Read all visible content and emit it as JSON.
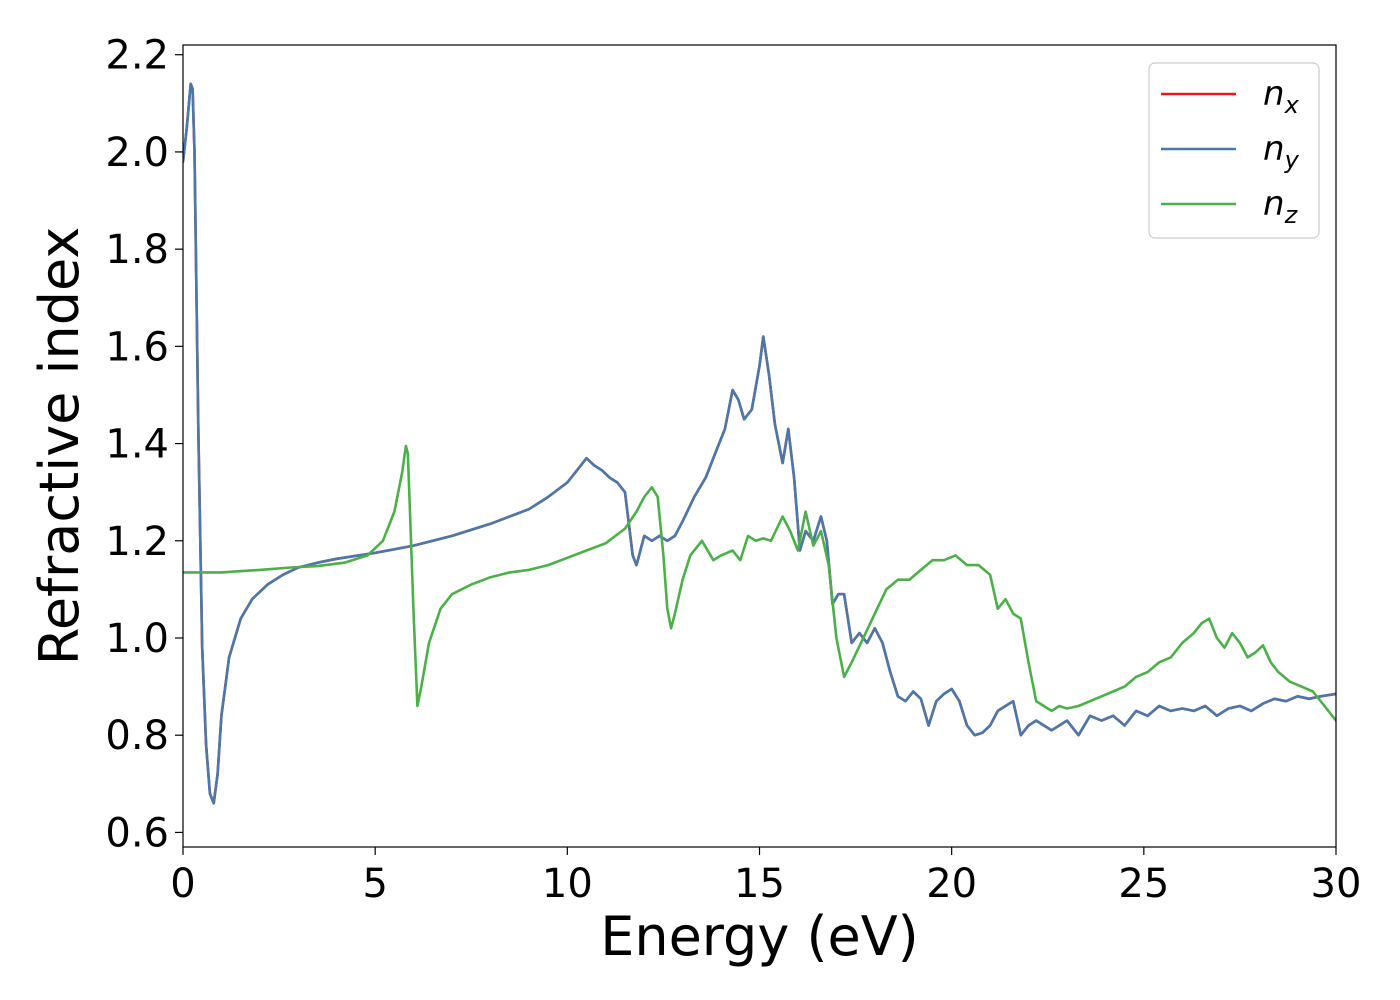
{
  "chart_data": {
    "type": "line",
    "xlabel": "Energy (eV)",
    "ylabel": "Refractive index",
    "xlim": [
      0,
      30
    ],
    "ylim": [
      0.57,
      2.22
    ],
    "xticks": [
      0,
      5,
      10,
      15,
      20,
      25,
      30
    ],
    "xtick_labels": [
      "0",
      "5",
      "10",
      "15",
      "20",
      "25",
      "30"
    ],
    "yticks": [
      0.6,
      0.8,
      1.0,
      1.2,
      1.4,
      1.6,
      1.8,
      2.0,
      2.2
    ],
    "ytick_labels": [
      "0.6",
      "0.8",
      "1.0",
      "1.2",
      "1.4",
      "1.6",
      "1.8",
      "2.0",
      "2.2"
    ],
    "grid": false,
    "legend_position": "top-right",
    "series": [
      {
        "name": "n_x",
        "label_base": "n",
        "label_sub": "x",
        "color": "#e41a1c",
        "x": [
          0,
          0.1,
          0.2,
          0.25,
          0.3,
          0.4,
          0.5,
          0.6,
          0.7,
          0.8,
          0.9,
          1.0,
          1.2,
          1.5,
          1.8,
          2.2,
          2.6,
          3.0,
          3.5,
          4.0,
          5.0,
          6.0,
          7.0,
          8.0,
          9.0,
          9.5,
          10.0,
          10.3,
          10.5,
          10.7,
          10.9,
          11.1,
          11.3,
          11.5,
          11.7,
          11.8,
          11.9,
          12.0,
          12.2,
          12.4,
          12.6,
          12.8,
          13.0,
          13.3,
          13.6,
          13.9,
          14.1,
          14.3,
          14.45,
          14.6,
          14.8,
          15.0,
          15.1,
          15.25,
          15.4,
          15.6,
          15.75,
          15.9,
          16.05,
          16.2,
          16.4,
          16.6,
          16.75,
          16.9,
          17.05,
          17.2,
          17.4,
          17.6,
          17.8,
          18.0,
          18.2,
          18.4,
          18.6,
          18.8,
          19.0,
          19.2,
          19.4,
          19.6,
          19.8,
          20.0,
          20.2,
          20.4,
          20.6,
          20.8,
          21.0,
          21.2,
          21.4,
          21.6,
          21.8,
          22.0,
          22.2,
          22.4,
          22.6,
          22.8,
          23.0,
          23.3,
          23.6,
          23.9,
          24.2,
          24.5,
          24.8,
          25.1,
          25.4,
          25.7,
          26.0,
          26.3,
          26.6,
          26.9,
          27.2,
          27.5,
          27.8,
          28.1,
          28.4,
          28.7,
          29.0,
          29.3,
          29.6,
          30.0
        ],
        "y": [
          1.98,
          2.05,
          2.14,
          2.13,
          2.0,
          1.42,
          0.98,
          0.78,
          0.68,
          0.66,
          0.72,
          0.84,
          0.96,
          1.04,
          1.08,
          1.11,
          1.13,
          1.145,
          1.155,
          1.163,
          1.175,
          1.19,
          1.21,
          1.235,
          1.265,
          1.29,
          1.32,
          1.35,
          1.37,
          1.355,
          1.345,
          1.33,
          1.32,
          1.3,
          1.17,
          1.15,
          1.18,
          1.21,
          1.2,
          1.21,
          1.2,
          1.21,
          1.24,
          1.29,
          1.33,
          1.39,
          1.43,
          1.51,
          1.49,
          1.45,
          1.47,
          1.56,
          1.62,
          1.54,
          1.44,
          1.36,
          1.43,
          1.33,
          1.18,
          1.22,
          1.2,
          1.25,
          1.2,
          1.07,
          1.09,
          1.09,
          0.99,
          1.01,
          0.99,
          1.02,
          0.99,
          0.93,
          0.88,
          0.87,
          0.89,
          0.875,
          0.82,
          0.87,
          0.885,
          0.895,
          0.87,
          0.82,
          0.8,
          0.805,
          0.82,
          0.85,
          0.86,
          0.87,
          0.8,
          0.82,
          0.83,
          0.82,
          0.81,
          0.82,
          0.83,
          0.8,
          0.84,
          0.83,
          0.84,
          0.82,
          0.85,
          0.84,
          0.86,
          0.85,
          0.855,
          0.85,
          0.86,
          0.84,
          0.855,
          0.86,
          0.85,
          0.865,
          0.875,
          0.87,
          0.88,
          0.875,
          0.88,
          0.885
        ]
      },
      {
        "name": "n_y",
        "label_base": "n",
        "label_sub": "y",
        "color": "#4a79a9",
        "x": [
          0,
          0.1,
          0.2,
          0.25,
          0.3,
          0.4,
          0.5,
          0.6,
          0.7,
          0.8,
          0.9,
          1.0,
          1.2,
          1.5,
          1.8,
          2.2,
          2.6,
          3.0,
          3.5,
          4.0,
          5.0,
          6.0,
          7.0,
          8.0,
          9.0,
          9.5,
          10.0,
          10.3,
          10.5,
          10.7,
          10.9,
          11.1,
          11.3,
          11.5,
          11.7,
          11.8,
          11.9,
          12.0,
          12.2,
          12.4,
          12.6,
          12.8,
          13.0,
          13.3,
          13.6,
          13.9,
          14.1,
          14.3,
          14.45,
          14.6,
          14.8,
          15.0,
          15.1,
          15.25,
          15.4,
          15.6,
          15.75,
          15.9,
          16.05,
          16.2,
          16.4,
          16.6,
          16.75,
          16.9,
          17.05,
          17.2,
          17.4,
          17.6,
          17.8,
          18.0,
          18.2,
          18.4,
          18.6,
          18.8,
          19.0,
          19.2,
          19.4,
          19.6,
          19.8,
          20.0,
          20.2,
          20.4,
          20.6,
          20.8,
          21.0,
          21.2,
          21.4,
          21.6,
          21.8,
          22.0,
          22.2,
          22.4,
          22.6,
          22.8,
          23.0,
          23.3,
          23.6,
          23.9,
          24.2,
          24.5,
          24.8,
          25.1,
          25.4,
          25.7,
          26.0,
          26.3,
          26.6,
          26.9,
          27.2,
          27.5,
          27.8,
          28.1,
          28.4,
          28.7,
          29.0,
          29.3,
          29.6,
          30.0
        ],
        "y": [
          1.98,
          2.05,
          2.14,
          2.13,
          2.0,
          1.42,
          0.98,
          0.78,
          0.68,
          0.66,
          0.72,
          0.84,
          0.96,
          1.04,
          1.08,
          1.11,
          1.13,
          1.145,
          1.155,
          1.163,
          1.175,
          1.19,
          1.21,
          1.235,
          1.265,
          1.29,
          1.32,
          1.35,
          1.37,
          1.355,
          1.345,
          1.33,
          1.32,
          1.3,
          1.17,
          1.15,
          1.18,
          1.21,
          1.2,
          1.21,
          1.2,
          1.21,
          1.24,
          1.29,
          1.33,
          1.39,
          1.43,
          1.51,
          1.49,
          1.45,
          1.47,
          1.56,
          1.62,
          1.54,
          1.44,
          1.36,
          1.43,
          1.33,
          1.18,
          1.22,
          1.2,
          1.25,
          1.2,
          1.07,
          1.09,
          1.09,
          0.99,
          1.01,
          0.99,
          1.02,
          0.99,
          0.93,
          0.88,
          0.87,
          0.89,
          0.875,
          0.82,
          0.87,
          0.885,
          0.895,
          0.87,
          0.82,
          0.8,
          0.805,
          0.82,
          0.85,
          0.86,
          0.87,
          0.8,
          0.82,
          0.83,
          0.82,
          0.81,
          0.82,
          0.83,
          0.8,
          0.84,
          0.83,
          0.84,
          0.82,
          0.85,
          0.84,
          0.86,
          0.85,
          0.855,
          0.85,
          0.86,
          0.84,
          0.855,
          0.86,
          0.85,
          0.865,
          0.875,
          0.87,
          0.88,
          0.875,
          0.88,
          0.885
        ]
      },
      {
        "name": "n_z",
        "label_base": "n",
        "label_sub": "z",
        "color": "#4daf4a",
        "x": [
          0,
          1.0,
          2.0,
          2.8,
          3.5,
          4.2,
          4.8,
          5.2,
          5.5,
          5.7,
          5.8,
          5.85,
          5.9,
          6.0,
          6.1,
          6.2,
          6.4,
          6.7,
          7.0,
          7.5,
          8.0,
          8.5,
          9.0,
          9.5,
          10.0,
          10.5,
          11.0,
          11.5,
          11.8,
          12.0,
          12.2,
          12.35,
          12.5,
          12.6,
          12.7,
          12.8,
          13.0,
          13.2,
          13.5,
          13.8,
          14.0,
          14.3,
          14.5,
          14.7,
          14.9,
          15.1,
          15.3,
          15.6,
          15.8,
          16.0,
          16.2,
          16.4,
          16.6,
          16.8,
          17.0,
          17.2,
          17.4,
          17.7,
          18.0,
          18.3,
          18.6,
          18.9,
          19.2,
          19.5,
          19.8,
          20.1,
          20.4,
          20.7,
          21.0,
          21.2,
          21.4,
          21.6,
          21.8,
          22.0,
          22.2,
          22.4,
          22.6,
          22.8,
          23.0,
          23.3,
          23.6,
          23.9,
          24.2,
          24.5,
          24.8,
          25.1,
          25.4,
          25.7,
          26.0,
          26.3,
          26.5,
          26.7,
          26.9,
          27.1,
          27.3,
          27.5,
          27.7,
          27.9,
          28.1,
          28.3,
          28.5,
          28.8,
          29.1,
          29.4,
          29.7,
          30.0
        ],
        "y": [
          1.135,
          1.135,
          1.14,
          1.145,
          1.148,
          1.155,
          1.17,
          1.2,
          1.26,
          1.34,
          1.395,
          1.38,
          1.27,
          1.05,
          0.86,
          0.9,
          0.99,
          1.06,
          1.09,
          1.11,
          1.125,
          1.135,
          1.14,
          1.15,
          1.165,
          1.18,
          1.195,
          1.225,
          1.26,
          1.29,
          1.31,
          1.29,
          1.17,
          1.06,
          1.02,
          1.05,
          1.12,
          1.17,
          1.2,
          1.16,
          1.17,
          1.18,
          1.16,
          1.21,
          1.2,
          1.205,
          1.2,
          1.25,
          1.22,
          1.18,
          1.26,
          1.19,
          1.22,
          1.15,
          1.0,
          0.92,
          0.95,
          1.0,
          1.05,
          1.1,
          1.12,
          1.12,
          1.14,
          1.16,
          1.16,
          1.17,
          1.15,
          1.15,
          1.13,
          1.06,
          1.08,
          1.05,
          1.04,
          0.95,
          0.87,
          0.86,
          0.85,
          0.86,
          0.855,
          0.86,
          0.87,
          0.88,
          0.89,
          0.9,
          0.92,
          0.93,
          0.95,
          0.96,
          0.99,
          1.01,
          1.03,
          1.04,
          1.0,
          0.98,
          1.01,
          0.99,
          0.96,
          0.97,
          0.985,
          0.95,
          0.93,
          0.91,
          0.9,
          0.89,
          0.86,
          0.83
        ]
      }
    ]
  }
}
